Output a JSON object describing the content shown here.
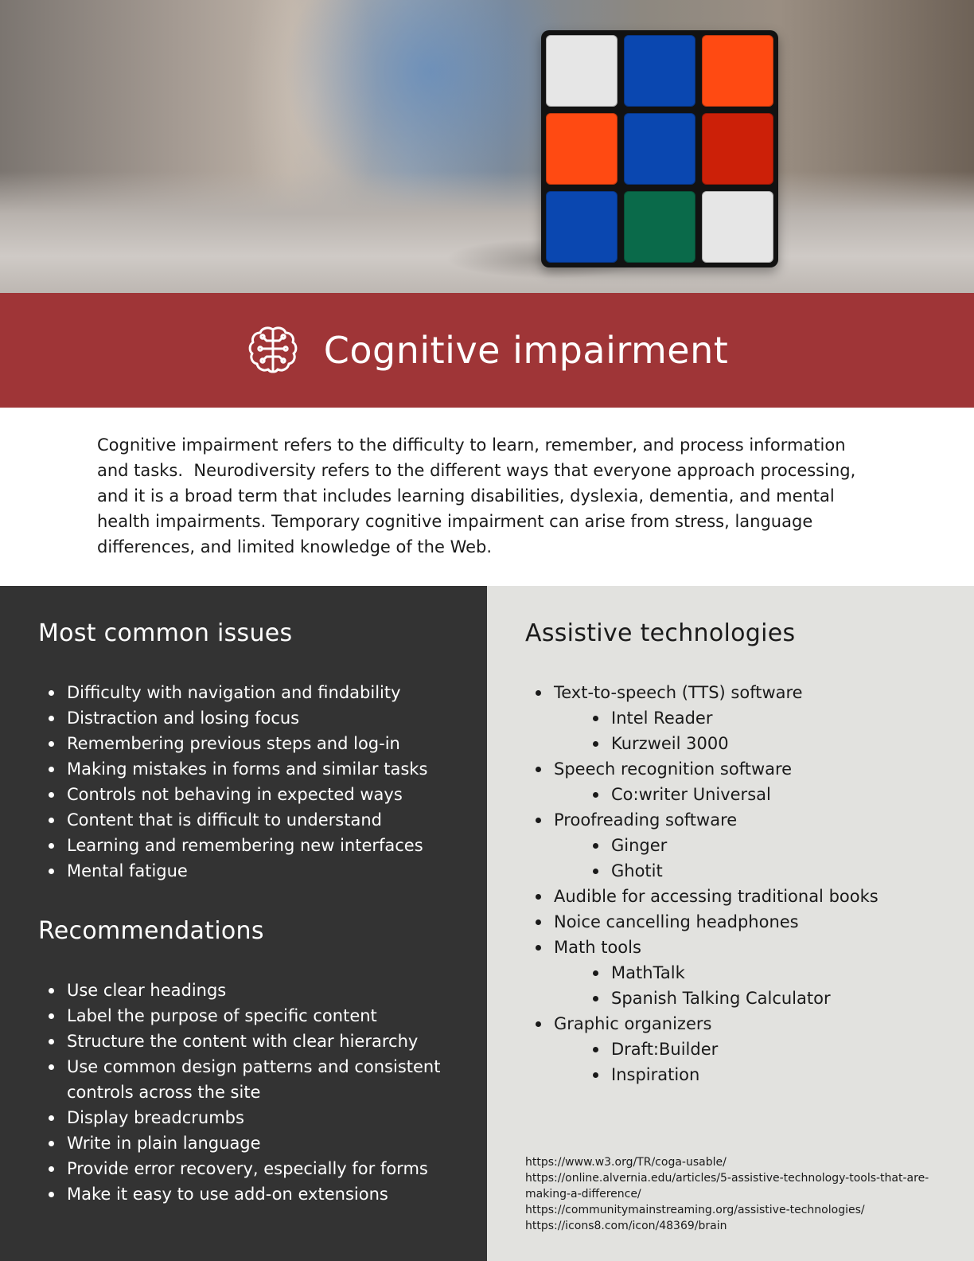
{
  "header": {
    "title": "Cognitive impairment",
    "icon": "brain-icon",
    "band_color": "#9f3537"
  },
  "hero": {
    "image": "rubiks-cube-photo",
    "cube_colors": [
      "#e6e6e6",
      "#0a47b0",
      "#ff4a12",
      "#ff4a12",
      "#0a47b0",
      "#cc2008",
      "#0a47b0",
      "#0a6a4a",
      "#e6e6e6"
    ]
  },
  "intro": {
    "text": "Cognitive impairment refers to the difficulty to learn, remember, and process information and tasks.  Neurodiversity refers to the different ways that everyone approach processing, and it is a broad term that includes learning disabilities, dyslexia, dementia, and mental health impairments. Temporary cognitive impairment can arise from stress, language differences, and limited knowledge of the Web."
  },
  "issues": {
    "title": "Most common issues",
    "items": [
      "Difficulty with navigation and findability",
      "Distraction and losing focus",
      "Remembering previous steps and log-in",
      "Making mistakes in forms and similar tasks",
      "Controls not behaving in expected ways",
      "Content that is difficult to understand",
      "Learning and remembering new interfaces",
      "Mental fatigue"
    ]
  },
  "recommendations": {
    "title": "Recommendations",
    "items": [
      "Use clear headings",
      "Label the purpose of specific content",
      "Structure the content with clear hierarchy",
      "Use common design patterns and consistent controls across the site",
      "Display breadcrumbs",
      "Write in plain language",
      "Provide error recovery, especially for forms",
      "Make it easy to use add-on extensions"
    ]
  },
  "assistive": {
    "title": "Assistive technologies",
    "items": [
      {
        "text": "Text-to-speech (TTS) software",
        "sub": [
          "Intel Reader",
          "Kurzweil 3000"
        ]
      },
      {
        "text": "Speech recognition software",
        "sub": [
          "Co:writer Universal"
        ]
      },
      {
        "text": "Proofreading software",
        "sub": [
          "Ginger",
          "Ghotit"
        ]
      },
      {
        "text": "Audible for accessing traditional books",
        "sub": []
      },
      {
        "text": "Noice cancelling headphones",
        "sub": []
      },
      {
        "text": "Math tools",
        "sub": [
          "MathTalk",
          "Spanish Talking Calculator"
        ]
      },
      {
        "text": "Graphic organizers",
        "sub": [
          "Draft:Builder",
          "Inspiration"
        ]
      }
    ]
  },
  "references": [
    "https://www.w3.org/TR/coga-usable/",
    "https://online.alvernia.edu/articles/5-assistive-technology-tools-that-are-making-a-difference/",
    "https://communitymainstreaming.org/assistive-technologies/",
    "https://icons8.com/icon/48369/brain"
  ]
}
